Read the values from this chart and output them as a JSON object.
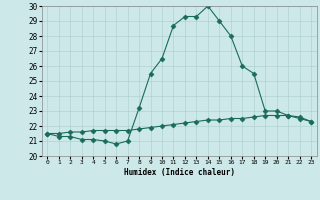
{
  "x": [
    0,
    1,
    2,
    3,
    4,
    5,
    6,
    7,
    8,
    9,
    10,
    11,
    12,
    13,
    14,
    15,
    16,
    17,
    18,
    19,
    20,
    21,
    22,
    23
  ],
  "y_main": [
    21.5,
    21.3,
    21.3,
    21.1,
    21.1,
    21.0,
    20.8,
    21.0,
    23.2,
    25.5,
    26.5,
    28.7,
    29.3,
    29.3,
    30.0,
    29.0,
    28.0,
    26.0,
    25.5,
    23.0,
    23.0,
    22.7,
    22.5,
    22.3
  ],
  "y_smooth": [
    21.5,
    21.5,
    21.6,
    21.6,
    21.7,
    21.7,
    21.7,
    21.7,
    21.8,
    21.9,
    22.0,
    22.1,
    22.2,
    22.3,
    22.4,
    22.4,
    22.5,
    22.5,
    22.6,
    22.7,
    22.7,
    22.7,
    22.6,
    22.3
  ],
  "line_color": "#1a6b5a",
  "bg_color": "#cce8e8",
  "grid_color": "#aacccc",
  "xlabel": "Humidex (Indice chaleur)",
  "ylim": [
    20,
    30
  ],
  "xlim": [
    -0.5,
    23.5
  ],
  "yticks": [
    20,
    21,
    22,
    23,
    24,
    25,
    26,
    27,
    28,
    29,
    30
  ],
  "xtick_labels": [
    "0",
    "1",
    "2",
    "3",
    "4",
    "5",
    "6",
    "7",
    "8",
    "9",
    "10",
    "11",
    "12",
    "13",
    "14",
    "15",
    "16",
    "17",
    "18",
    "19",
    "20",
    "21",
    "22",
    "23"
  ]
}
